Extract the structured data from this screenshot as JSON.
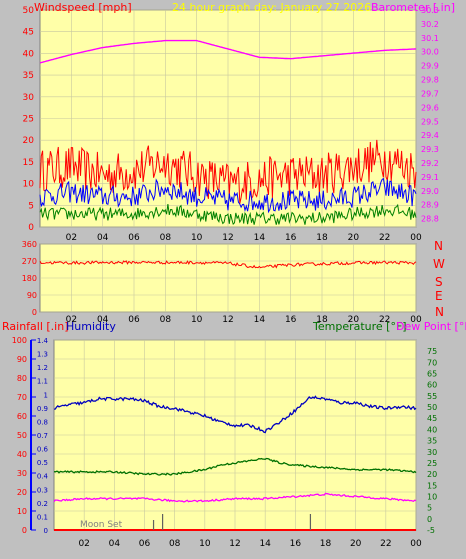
{
  "header": {
    "wind_label": "Windspeed [mph]",
    "title": "24 hour graph day:  January 27 2026",
    "baro_label": "Barometer [.in]"
  },
  "colors": {
    "background": "#c0c0c0",
    "plot_background": "#ffffa8",
    "wind_avg": "#0000ff",
    "wind_gust": "#ff0000",
    "wind_low": "#008000",
    "barometer": "#ff00ff",
    "direction": "#ff0000",
    "humidity": "#0000c0",
    "temperature": "#007000",
    "dewpoint": "#ff00ff",
    "title": "#ffff00"
  },
  "direction_panel": {
    "compass_letters": [
      "N",
      "W",
      "S",
      "E",
      "N"
    ]
  },
  "bottom_header": {
    "rain_label": "Rainfall [.in]",
    "humidity_label": "Humidity",
    "temp_label": "Temperature [°F]",
    "dew_label": "Dew Point [°F]"
  },
  "annotations": {
    "moon_set": "Moon Set"
  },
  "chart_data": [
    {
      "id": "wind_barometer",
      "type": "line",
      "x_ticks": [
        "02",
        "04",
        "06",
        "08",
        "10",
        "12",
        "14",
        "16",
        "18",
        "20",
        "22",
        "00"
      ],
      "xlim": [
        0,
        24
      ],
      "y_left_ticks": [
        0,
        5,
        10,
        15,
        20,
        25,
        30,
        35,
        40,
        45,
        50
      ],
      "ylim_left": [
        0,
        50
      ],
      "y_right_ticks": [
        28.8,
        28.9,
        29.0,
        29.1,
        29.2,
        29.3,
        29.4,
        29.5,
        29.6,
        29.7,
        29.8,
        29.9,
        30.0,
        30.1,
        30.2,
        30.3
      ],
      "ylim_right": [
        28.74,
        30.3
      ],
      "series": [
        {
          "key": "gust",
          "color": "#ff0000",
          "axis": "left",
          "x": [
            0,
            2,
            4,
            6,
            8,
            10,
            12,
            14,
            16,
            18,
            20,
            22,
            24
          ],
          "values": [
            13,
            14,
            12,
            13,
            15,
            12,
            10,
            11,
            12,
            12,
            14,
            16,
            13
          ]
        },
        {
          "key": "avg",
          "color": "#0000ff",
          "axis": "left",
          "x": [
            0,
            2,
            4,
            6,
            8,
            10,
            12,
            14,
            16,
            18,
            20,
            22,
            24
          ],
          "values": [
            7,
            8,
            7,
            7,
            9,
            7,
            6,
            6,
            6,
            6,
            7,
            9,
            7
          ]
        },
        {
          "key": "low",
          "color": "#008000",
          "axis": "left",
          "x": [
            0,
            2,
            4,
            6,
            8,
            10,
            12,
            14,
            16,
            18,
            20,
            22,
            24
          ],
          "values": [
            3,
            3,
            3,
            3,
            4,
            3,
            2,
            2,
            2,
            2,
            3,
            4,
            3
          ]
        },
        {
          "key": "barometer",
          "color": "#ff00ff",
          "axis": "right",
          "x": [
            0,
            2,
            4,
            6,
            8,
            10,
            12,
            14,
            16,
            18,
            20,
            22,
            24
          ],
          "values": [
            29.92,
            29.98,
            30.03,
            30.06,
            30.08,
            30.08,
            30.02,
            29.96,
            29.95,
            29.97,
            29.99,
            30.01,
            30.02
          ]
        }
      ]
    },
    {
      "id": "wind_direction",
      "type": "line",
      "x_ticks": [
        "02",
        "04",
        "06",
        "08",
        "10",
        "12",
        "14",
        "16",
        "18",
        "20",
        "22",
        "00"
      ],
      "xlim": [
        0,
        24
      ],
      "y_ticks": [
        0,
        90,
        180,
        270,
        360
      ],
      "ylim": [
        0,
        360
      ],
      "series": [
        {
          "key": "direction",
          "color": "#ff0000",
          "x": [
            0,
            2,
            4,
            6,
            8,
            10,
            12,
            14,
            16,
            18,
            20,
            22,
            24
          ],
          "values": [
            262,
            260,
            262,
            263,
            262,
            262,
            258,
            235,
            250,
            255,
            260,
            262,
            260
          ]
        }
      ]
    },
    {
      "id": "temp_humidity_rain",
      "type": "line",
      "x_ticks": [
        "02",
        "04",
        "06",
        "08",
        "10",
        "12",
        "14",
        "16",
        "18",
        "20",
        "22",
        "00"
      ],
      "xlim": [
        0,
        24
      ],
      "y_rain_ticks": [
        0,
        0.1,
        0.2,
        0.3,
        0.4,
        0.5,
        0.6,
        0.7,
        0.8,
        0.9,
        1,
        1.1,
        1.2,
        1.3,
        1.4
      ],
      "y_humidity_ticks": [
        0,
        10,
        20,
        30,
        40,
        50,
        60,
        70,
        80,
        90,
        100
      ],
      "ylim_humidity": [
        0,
        100
      ],
      "y_temp_ticks": [
        -5,
        0,
        5,
        10,
        15,
        20,
        25,
        30,
        35,
        40,
        45,
        50,
        55,
        60,
        65,
        70,
        75
      ],
      "ylim_temp": [
        -5,
        80
      ],
      "series": [
        {
          "key": "humidity",
          "color": "#0000c0",
          "axis": "humidity",
          "x": [
            0,
            1,
            2,
            3,
            4,
            5,
            6,
            7,
            8,
            9,
            10,
            11,
            12,
            13,
            14,
            15,
            16,
            17,
            18,
            19,
            20,
            21,
            22,
            23,
            24
          ],
          "values": [
            64,
            66,
            67,
            69,
            69,
            69,
            68,
            65,
            64,
            62,
            60,
            57,
            55,
            55,
            52,
            57,
            63,
            70,
            69,
            67,
            67,
            65,
            64,
            65,
            64
          ]
        },
        {
          "key": "temperature",
          "color": "#007000",
          "axis": "temp",
          "x": [
            0,
            2,
            4,
            6,
            8,
            10,
            11,
            12,
            13,
            14,
            15,
            16,
            18,
            20,
            22,
            24
          ],
          "values": [
            21,
            21,
            21,
            20,
            20,
            22,
            24,
            25,
            26,
            27,
            25,
            24,
            23,
            22,
            22,
            21
          ]
        },
        {
          "key": "dewpoint",
          "color": "#ff00ff",
          "axis": "temp",
          "x": [
            0,
            2,
            4,
            6,
            8,
            10,
            12,
            14,
            16,
            18,
            20,
            22,
            24
          ],
          "values": [
            8,
            9,
            9,
            9,
            8,
            8,
            9,
            9,
            10,
            11,
            10,
            9,
            8
          ]
        },
        {
          "key": "rain",
          "color": "#ff0000",
          "axis": "rain",
          "x": [
            0,
            24
          ],
          "values": [
            0,
            0
          ]
        }
      ]
    }
  ]
}
